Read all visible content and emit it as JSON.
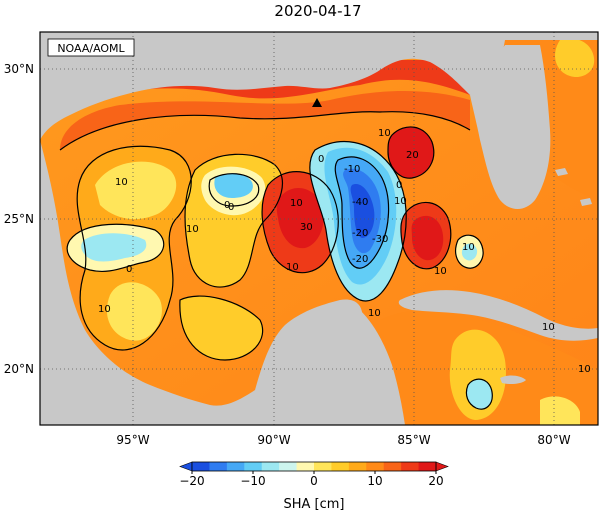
{
  "title": "2020-04-17",
  "credit": "NOAA/AOML",
  "lat_labels": [
    "30°N",
    "25°N",
    "20°N"
  ],
  "lon_labels": [
    "95°W",
    "90°W",
    "85°W",
    "80°W"
  ],
  "colorbar": {
    "label": "SHA [cm]",
    "ticks": [
      "−20",
      "−10",
      "0",
      "10",
      "20"
    ],
    "range": [
      -20,
      20
    ],
    "colors": [
      "#1a4fe0",
      "#2f7cf0",
      "#45a8f6",
      "#62cdf6",
      "#9ce8f2",
      "#cdf5ee",
      "#fff8b0",
      "#ffe55a",
      "#ffcc2a",
      "#ffaa1a",
      "#ff8a18",
      "#f86418",
      "#ee3a18",
      "#e01818"
    ]
  },
  "contour_labels": [
    "10",
    "0",
    "10",
    "10",
    "10",
    "0",
    "10",
    "-10",
    "0",
    "10",
    "-40",
    "-30",
    "-20",
    "10",
    "10",
    "-20",
    "30",
    "20",
    "10",
    "10",
    "10",
    "0",
    "0",
    "10"
  ],
  "colors": {
    "land": "#c8c8c8",
    "frame": "#000000",
    "grid": "#555555"
  },
  "marker": "triangle-marker"
}
